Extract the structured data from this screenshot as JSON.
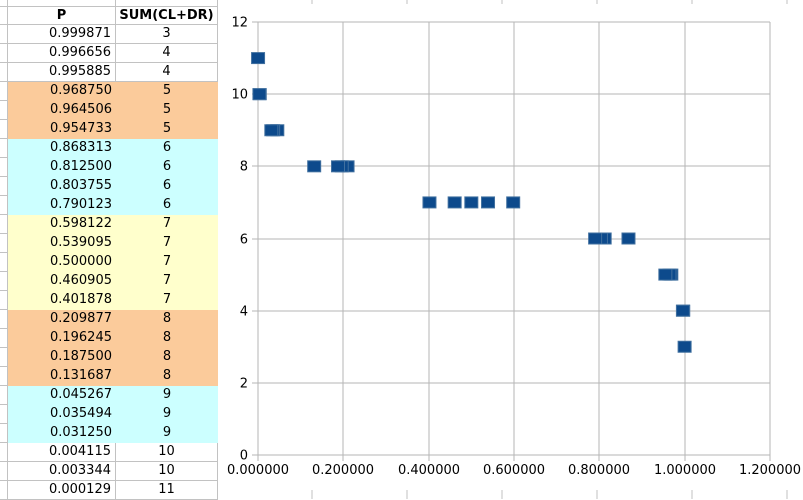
{
  "colors": {
    "band_orange": "#FBCB9B",
    "band_cyan": "#CCFFFF",
    "band_yellow": "#FFFFCC",
    "band_white": "#FFFFFF",
    "marker_fill": "#0D4A8C",
    "marker_edge": "#41709F",
    "sheet_grid": "#C2C2C2",
    "chart_grid": "#B6B6B6",
    "text": "#000000"
  },
  "table": {
    "headers": {
      "p": "P",
      "sum": "SUM(CL+DR)"
    },
    "rows": [
      {
        "p": "0.999871",
        "sum": "3",
        "band": "white"
      },
      {
        "p": "0.996656",
        "sum": "4",
        "band": "white"
      },
      {
        "p": "0.995885",
        "sum": "4",
        "band": "white"
      },
      {
        "p": "0.968750",
        "sum": "5",
        "band": "orange"
      },
      {
        "p": "0.964506",
        "sum": "5",
        "band": "orange"
      },
      {
        "p": "0.954733",
        "sum": "5",
        "band": "orange"
      },
      {
        "p": "0.868313",
        "sum": "6",
        "band": "cyan"
      },
      {
        "p": "0.812500",
        "sum": "6",
        "band": "cyan"
      },
      {
        "p": "0.803755",
        "sum": "6",
        "band": "cyan"
      },
      {
        "p": "0.790123",
        "sum": "6",
        "band": "cyan"
      },
      {
        "p": "0.598122",
        "sum": "7",
        "band": "yellow"
      },
      {
        "p": "0.539095",
        "sum": "7",
        "band": "yellow"
      },
      {
        "p": "0.500000",
        "sum": "7",
        "band": "yellow"
      },
      {
        "p": "0.460905",
        "sum": "7",
        "band": "yellow"
      },
      {
        "p": "0.401878",
        "sum": "7",
        "band": "yellow"
      },
      {
        "p": "0.209877",
        "sum": "8",
        "band": "orange"
      },
      {
        "p": "0.196245",
        "sum": "8",
        "band": "orange"
      },
      {
        "p": "0.187500",
        "sum": "8",
        "band": "orange"
      },
      {
        "p": "0.131687",
        "sum": "8",
        "band": "orange"
      },
      {
        "p": "0.045267",
        "sum": "9",
        "band": "cyan"
      },
      {
        "p": "0.035494",
        "sum": "9",
        "band": "cyan"
      },
      {
        "p": "0.031250",
        "sum": "9",
        "band": "cyan"
      },
      {
        "p": "0.004115",
        "sum": "10",
        "band": "white"
      },
      {
        "p": "0.003344",
        "sum": "10",
        "band": "white"
      },
      {
        "p": "0.000129",
        "sum": "11",
        "band": "white"
      }
    ]
  },
  "chart_data": {
    "type": "scatter",
    "title": "",
    "xlabel": "",
    "ylabel": "",
    "xlim": [
      0,
      1.2
    ],
    "ylim": [
      0,
      12
    ],
    "grid": true,
    "legend": "none",
    "marker": "square",
    "x_ticks": {
      "values": [
        0.0,
        0.2,
        0.4,
        0.6,
        0.8,
        1.0,
        1.2
      ],
      "labels": [
        "0.000000",
        "0.200000",
        "0.400000",
        "0.600000",
        "0.800000",
        "1.000000",
        "1.200000"
      ]
    },
    "y_ticks": {
      "values": [
        0,
        2,
        4,
        6,
        8,
        10,
        12
      ],
      "labels": [
        "0",
        "2",
        "4",
        "6",
        "8",
        "10",
        "12"
      ]
    },
    "points": [
      {
        "x": 0.999871,
        "y": 3
      },
      {
        "x": 0.996656,
        "y": 4
      },
      {
        "x": 0.995885,
        "y": 4
      },
      {
        "x": 0.96875,
        "y": 5
      },
      {
        "x": 0.964506,
        "y": 5
      },
      {
        "x": 0.954733,
        "y": 5
      },
      {
        "x": 0.868313,
        "y": 6
      },
      {
        "x": 0.8125,
        "y": 6
      },
      {
        "x": 0.803755,
        "y": 6
      },
      {
        "x": 0.790123,
        "y": 6
      },
      {
        "x": 0.598122,
        "y": 7
      },
      {
        "x": 0.539095,
        "y": 7
      },
      {
        "x": 0.5,
        "y": 7
      },
      {
        "x": 0.460905,
        "y": 7
      },
      {
        "x": 0.401878,
        "y": 7
      },
      {
        "x": 0.209877,
        "y": 8
      },
      {
        "x": 0.196245,
        "y": 8
      },
      {
        "x": 0.1875,
        "y": 8
      },
      {
        "x": 0.131687,
        "y": 8
      },
      {
        "x": 0.045267,
        "y": 9
      },
      {
        "x": 0.035494,
        "y": 9
      },
      {
        "x": 0.03125,
        "y": 9
      },
      {
        "x": 0.004115,
        "y": 10
      },
      {
        "x": 0.003344,
        "y": 10
      },
      {
        "x": 0.000129,
        "y": 11
      }
    ]
  }
}
